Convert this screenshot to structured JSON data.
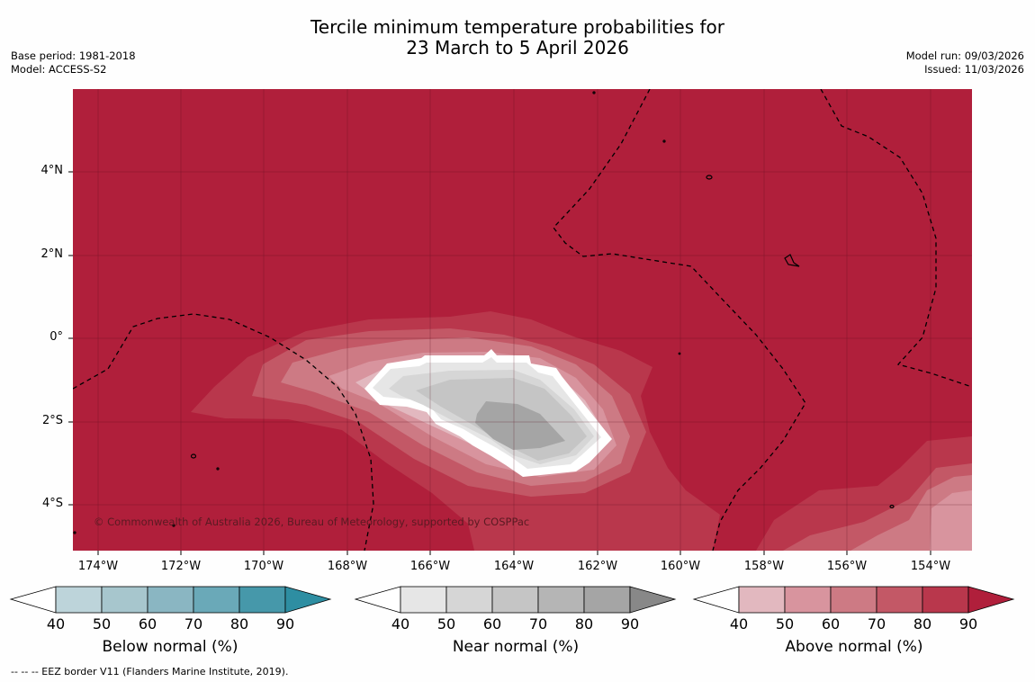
{
  "title": {
    "line1": "Tercile minimum temperature probabilities for",
    "line2": "23 March to 5 April 2026"
  },
  "meta": {
    "base_period": "Base period: 1981-2018",
    "model": "Model: ACCESS-S2",
    "model_run": "Model run: 09/03/2026",
    "issued": "Issued: 11/03/2026"
  },
  "map": {
    "lat_ticks": [
      "4°N",
      "2°N",
      "0°",
      "2°S",
      "4°S"
    ],
    "lon_ticks": [
      "174°W",
      "172°W",
      "170°W",
      "168°W",
      "166°W",
      "164°W",
      "162°W",
      "160°W",
      "158°W",
      "156°W",
      "154°W"
    ],
    "copyright": "© Commonwealth of Australia 2026, Bureau of Meteorology, supported by COSPPac"
  },
  "colorbars": [
    {
      "label": "Below normal (%)",
      "ticks": [
        "40",
        "50",
        "60",
        "70",
        "80",
        "90"
      ],
      "colors": [
        "#ffffff",
        "#bdd4da",
        "#a7c6cd",
        "#8ab6c2",
        "#6aa9b8",
        "#4698aa",
        "#2e8ea2"
      ]
    },
    {
      "label": "Near normal (%)",
      "ticks": [
        "40",
        "50",
        "60",
        "70",
        "80",
        "90"
      ],
      "colors": [
        "#ffffff",
        "#e6e6e6",
        "#d6d6d6",
        "#c5c5c5",
        "#b5b5b5",
        "#a5a5a5",
        "#888888"
      ]
    },
    {
      "label": "Above normal (%)",
      "ticks": [
        "40",
        "50",
        "60",
        "70",
        "80",
        "90"
      ],
      "colors": [
        "#ffffff",
        "#e2b8bf",
        "#d8949e",
        "#cd7a84",
        "#c35866",
        "#b9374c",
        "#b01f3b"
      ]
    }
  ],
  "legend_note": "--  --  -- EEZ border V11 (Flanders Marine Institute, 2019)."
}
